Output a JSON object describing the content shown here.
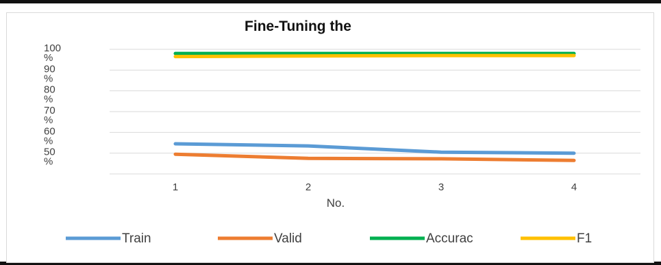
{
  "chart_data": {
    "type": "line",
    "title": "Fine-Tuning the",
    "xlabel": "No.",
    "ylabel": "",
    "categories": [
      "1",
      "2",
      "3",
      "4"
    ],
    "ylim": [
      40,
      100
    ],
    "y_ticks": [
      {
        "value": 100,
        "line1": "100",
        "line2": "%"
      },
      {
        "value": 90,
        "line1": "90",
        "line2": "%"
      },
      {
        "value": 80,
        "line1": "80",
        "line2": "%"
      },
      {
        "value": 70,
        "line1": "70",
        "line2": "%"
      },
      {
        "value": 60,
        "line1": "60",
        "line2": "%"
      },
      {
        "value": 50,
        "line1": "50",
        "line2": "%"
      }
    ],
    "grid": true,
    "legend_position": "bottom",
    "series": [
      {
        "name": "Train",
        "color": "#5b9bd5",
        "values": [
          54.5,
          53.5,
          50.5,
          50.0
        ]
      },
      {
        "name": "Valid",
        "color": "#ed7d31",
        "values": [
          49.5,
          47.5,
          47.3,
          46.5
        ]
      },
      {
        "name": "Accurac",
        "color": "#00b050",
        "values": [
          98.0,
          98.0,
          98.0,
          98.0
        ]
      },
      {
        "name": "F1",
        "color": "#ffc000",
        "values": [
          96.5,
          96.8,
          97.0,
          97.0
        ]
      }
    ]
  }
}
